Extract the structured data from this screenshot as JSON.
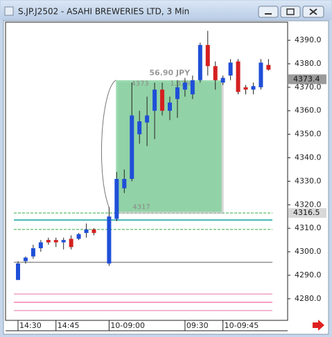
{
  "chart_data": {
    "type": "candlestick",
    "title": "S.JP.J2502 - ASAHI BREWERIES LTD, 3 Min",
    "categories": [
      "14:30",
      null,
      null,
      null,
      null,
      "14:45",
      null,
      null,
      null,
      null,
      null,
      null,
      "10-09:00",
      null,
      null,
      null,
      null,
      null,
      null,
      null,
      null,
      null,
      "09:30",
      null,
      null,
      null,
      null,
      "10-09:45",
      null,
      null,
      null,
      null,
      null,
      null
    ],
    "open": [
      4288,
      4296,
      4298,
      4301.5,
      4305,
      4305,
      4304,
      4305.5,
      4305.5,
      4308,
      4309.5,
      null,
      4295,
      4314,
      4327,
      4331,
      4350,
      4355,
      4360,
      4369,
      4360,
      4365,
      4369,
      4367,
      4373,
      4388,
      4379,
      4372,
      4375,
      4381,
      4370,
      4369,
      4370,
      4379.5
    ],
    "high": [
      4296,
      4298,
      4303,
      4305,
      4306,
      4306,
      4306,
      4307,
      4308,
      4312,
      4310,
      null,
      4319,
      4334,
      4335,
      4372,
      4360,
      4366,
      4372,
      4372,
      4366,
      4373,
      4374,
      4375,
      4389,
      4394,
      4381,
      4375,
      4382,
      4382,
      4371,
      4372,
      4382,
      4382
    ],
    "low": [
      4288,
      4295,
      4297,
      4300,
      4303,
      4302,
      4301,
      4301,
      4305,
      4306,
      4307,
      null,
      4294,
      4313,
      4325,
      4330,
      4346,
      4345,
      4348,
      4358,
      4356,
      4357,
      4366,
      4365,
      4372,
      4375,
      4369,
      4371,
      4373,
      4367,
      4367,
      4367,
      4369,
      4377
    ],
    "close": [
      4295,
      4297.5,
      4301.5,
      4304,
      4304,
      4304,
      4305,
      4302,
      4307.5,
      4309.5,
      4308,
      null,
      4315,
      4331,
      4331,
      4358,
      4355.5,
      4358,
      4369,
      4360,
      4363.5,
      4370,
      4372,
      4373,
      4388,
      4379,
      4373,
      4374,
      4380.5,
      4368,
      4369,
      4370.5,
      4380.5,
      4377.5
    ],
    "up_color": "#1f4fd8",
    "down_color": "#d42020",
    "ylim": [
      4270.8,
      4397.7
    ],
    "yticks": [
      {
        "value": 4280,
        "label": "4280.0"
      },
      {
        "value": 4290,
        "label": "4290.0"
      },
      {
        "value": 4300,
        "label": "4300.0"
      },
      {
        "value": 4310,
        "label": "4310.0"
      },
      {
        "value": 4320,
        "label": "4320.0"
      },
      {
        "value": 4330,
        "label": "4330.0"
      },
      {
        "value": 4340,
        "label": "4340.0"
      },
      {
        "value": 4350,
        "label": "4350.0"
      },
      {
        "value": 4360,
        "label": "4360.0"
      },
      {
        "value": 4370,
        "label": "4370.0"
      },
      {
        "value": 4380,
        "label": "4380.0"
      },
      {
        "value": 4390,
        "label": "4390.0"
      }
    ],
    "levels": [
      {
        "value": 4316.5,
        "color": "#33aa44",
        "dashed": true
      },
      {
        "value": 4313.5,
        "color": "#1aa6a6",
        "dashed": false
      },
      {
        "value": 4309.5,
        "color": "#33aa44",
        "dashed": true
      },
      {
        "value": 4295.5,
        "color": "#999999",
        "dashed": false
      },
      {
        "value": 4282,
        "color": "#f2a6c8",
        "dashed": false
      },
      {
        "value": 4278.5,
        "color": "#f78ab8",
        "dashed": false
      },
      {
        "value": 4275,
        "color": "#f2a6c8",
        "dashed": false
      }
    ],
    "price_markers": [
      {
        "value": 4373.4,
        "color": "#9a9a9a"
      },
      {
        "value": 4316.5,
        "color": "#d8d8d8"
      }
    ],
    "measure": {
      "from": 4317,
      "to": 4373,
      "start_index": 13,
      "end_index": 27,
      "change": "56.90 JPY",
      "percent": "1.32%",
      "top_label": "4373",
      "bottom_label": "4317",
      "color": "#7fd19a"
    }
  }
}
